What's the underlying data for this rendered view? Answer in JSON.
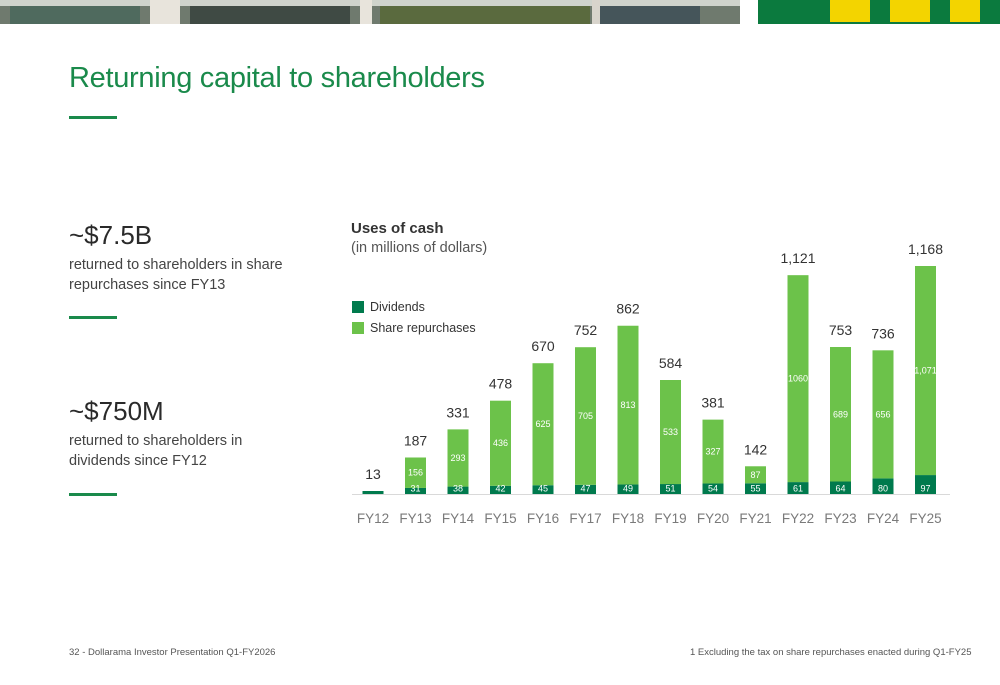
{
  "page": {
    "title": "Returning capital to shareholders",
    "stat1": {
      "value": "~$7.5B",
      "text": "returned to shareholders in share repurchases since FY13"
    },
    "stat2": {
      "value": "~$750M",
      "text": "returned to shareholders in dividends since FY12"
    },
    "footer_left": "32 - Dollarama Investor Presentation Q1-FY2026",
    "footer_right": "1 Excluding the tax on share repurchases enacted during Q1-FY25",
    "colors": {
      "brand_green": "#1a8a4b",
      "dividends": "#007a4d",
      "repurchases": "#6cc24a"
    }
  },
  "chart_data": {
    "type": "bar",
    "stacked": true,
    "title": "Uses of cash",
    "subtitle": "(in millions of dollars)",
    "categories": [
      "FY12",
      "FY13",
      "FY14",
      "FY15",
      "FY16",
      "FY17",
      "FY18",
      "FY19",
      "FY20",
      "FY21",
      "FY22",
      "FY23",
      "FY24",
      "FY25"
    ],
    "totals": [
      "13",
      "187",
      "331",
      "478",
      "670",
      "752",
      "862",
      "584",
      "381",
      "142",
      "1,121",
      "753",
      "736",
      "1,168"
    ],
    "series": [
      {
        "name": "Dividends",
        "color": "#007a4d",
        "values": [
          13,
          31,
          38,
          42,
          45,
          47,
          49,
          51,
          54,
          55,
          61,
          64,
          80,
          97
        ],
        "labels": [
          "",
          "31",
          "38",
          "42",
          "45",
          "47",
          "49",
          "51",
          "54",
          "55",
          "61",
          "64",
          "80",
          "97"
        ]
      },
      {
        "name": "Share repurchases",
        "color": "#6cc24a",
        "values": [
          0,
          156,
          293,
          436,
          625,
          705,
          813,
          533,
          327,
          87,
          1060,
          689,
          656,
          1071
        ],
        "labels": [
          "",
          "156",
          "293",
          "436",
          "625",
          "705",
          "813",
          "533",
          "327",
          "87",
          "1060",
          "689",
          "656",
          "1,071"
        ]
      }
    ],
    "ylim": [
      0,
      1168
    ],
    "legend_position": "top-left",
    "grid": false
  }
}
